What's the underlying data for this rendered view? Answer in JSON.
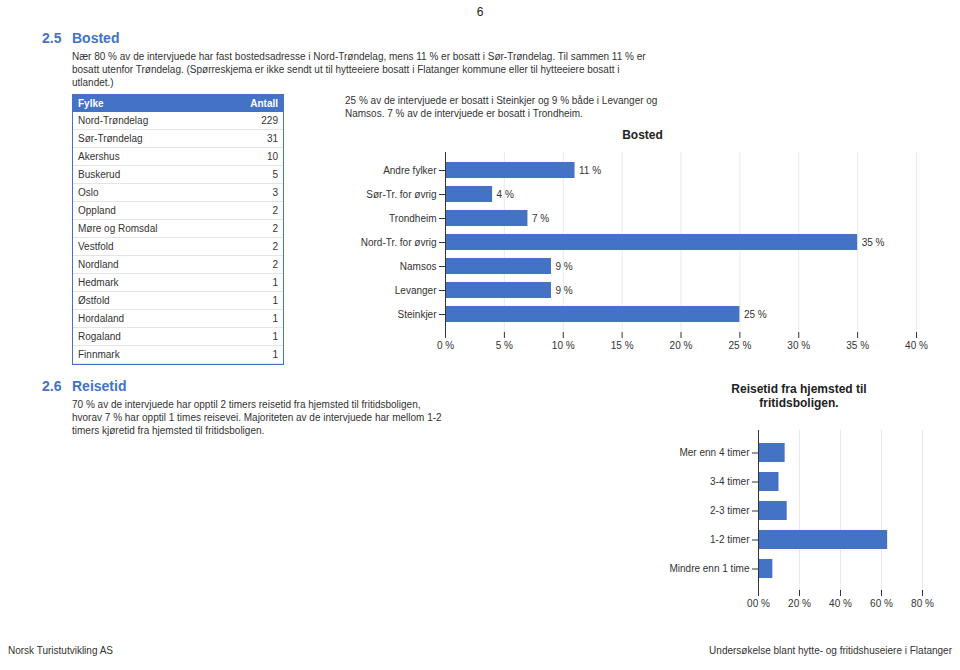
{
  "chart_data": [
    {
      "type": "bar",
      "title": "Bosted",
      "orientation": "horizontal",
      "categories": [
        "Andre fylker",
        "Sør-Tr. for øvrig",
        "Trondheim",
        "Nord-Tr. for øvrig",
        "Namsos",
        "Levanger",
        "Steinkjer"
      ],
      "values": [
        11,
        4,
        7,
        35,
        9,
        9,
        25
      ],
      "value_labels": [
        "11 %",
        "4 %",
        "7 %",
        "35 %",
        "9 %",
        "9 %",
        "25 %"
      ],
      "data_labels": true,
      "color": "#4472C4",
      "xlim": [
        0,
        40
      ],
      "xticks": [
        {
          "value": 0,
          "label": "0 %"
        },
        {
          "value": 5,
          "label": "5 %"
        },
        {
          "value": 10,
          "label": "10 %"
        },
        {
          "value": 15,
          "label": "15 %"
        },
        {
          "value": 20,
          "label": "20 %"
        },
        {
          "value": 25,
          "label": "25 %"
        },
        {
          "value": 30,
          "label": "30 %"
        },
        {
          "value": 35,
          "label": "35 %"
        },
        {
          "value": 40,
          "label": "40 %"
        }
      ],
      "grid": true,
      "annotations": [
        "6",
        "2.5",
        "Bosted",
        "Nær 80 % av de intervjuede har fast bostedsadresse i Nord-Trøndelag, mens 11 % er bosatt i Sør-Trøndelag. Til sammen 11 % er",
        "bosatt utenfor Trøndelag. (Spørreskjema er ikke sendt ut til hytteeiere bosatt i Flatanger kommune eller til hytteeiere bosatt i",
        "utlandet.)",
        "25 % av de intervjuede er bosatt i Steinkjer og 9 % både i Levanger og",
        "Namsos. 7 % av de intervjuede er bosatt i Trondheim.",
        "Norsk Turistutvikling AS",
        "Undersøkelse blant hytte- og fritidshuseiere i Flatanger"
      ]
    },
    {
      "type": "table",
      "columns": [
        "Fylke",
        "Antall"
      ],
      "categories": [
        "Nord-Trøndelag",
        "Sør-Trøndelag",
        "Akershus",
        "Buskerud",
        "Oslo",
        "Oppland",
        "Møre og Romsdal",
        "Vestfold",
        "Nordland",
        "Hedmark",
        "Østfold",
        "Hordaland",
        "Rogaland",
        "Finnmark"
      ],
      "values": [
        229,
        31,
        10,
        5,
        3,
        2,
        2,
        2,
        2,
        1,
        1,
        1,
        1,
        1
      ],
      "color": "#4472C4"
    },
    {
      "type": "bar",
      "title": "Reisetid fra hjemsted til\nfritidsboligen.",
      "orientation": "horizontal",
      "categories": [
        "Mer enn 4 timer",
        "3-4 timer",
        "2-3 timer",
        "1-2 timer",
        "Mindre enn 1 time"
      ],
      "values": [
        13,
        10,
        14,
        63,
        7
      ],
      "color": "#4472C4",
      "xlim": [
        0,
        80
      ],
      "xticks": [
        {
          "value": 0,
          "label": "00 %"
        },
        {
          "value": 20,
          "label": "20 %"
        },
        {
          "value": 40,
          "label": "40 %"
        },
        {
          "value": 60,
          "label": "60 %"
        },
        {
          "value": 80,
          "label": "80 %"
        }
      ],
      "grid": true,
      "annotations": [
        "2.6",
        "Reisetid",
        "70 % av de intervjuede har opptil 2 timers reisetid fra hjemsted til fritidsboligen,",
        "hvorav 7 % har opptil 1 times reisevei. Majoriteten av de intervjuede har mellom 1-2",
        "timers kjøretid fra hjemsted til fritidsboligen."
      ]
    }
  ]
}
